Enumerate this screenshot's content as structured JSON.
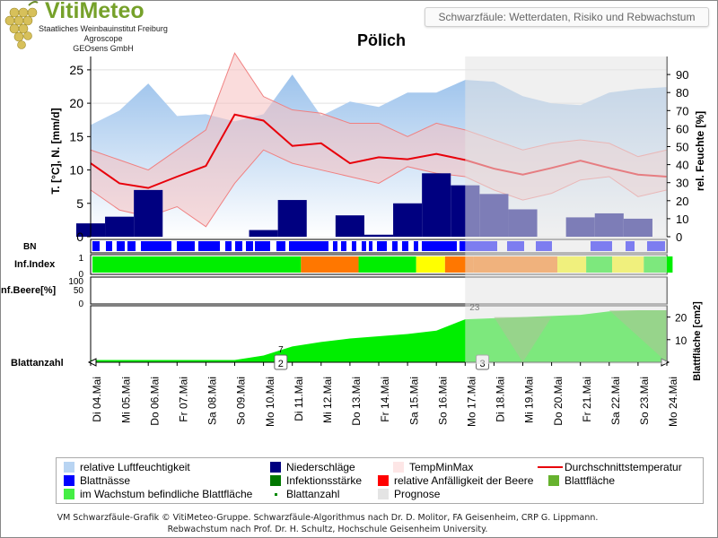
{
  "brand": {
    "name": "VitiMeteo",
    "lines": [
      "Staatliches Weinbauinstitut Freiburg",
      "Agroscope",
      "GEOsens GmbH"
    ]
  },
  "header": {
    "subtitle": "Schwarzfäule: Wetterdaten, Risiko und Rebwachstum",
    "title": "Pölich"
  },
  "colors": {
    "humidity": "#9dc3ec",
    "precip": "#000080",
    "tempband": "#f6c0c0",
    "avgtemp": "#e8000a",
    "wetness": "#0000ff",
    "growth": "#00ee00",
    "forecast": "#e8e8e8"
  },
  "chart_data": {
    "type": "combo",
    "dates": [
      "Di 04.Mai",
      "Mi 05.Mai",
      "Do 06.Mai",
      "Fr 07.Mai",
      "Sa 08.Mai",
      "So 09.Mai",
      "Mo 10.Mai",
      "Di 11.Mai",
      "Mi 12.Mai",
      "Do 13.Mai",
      "Fr 14.Mai",
      "Sa 15.Mai",
      "So 16.Mai",
      "Mo 17.Mai",
      "Di 18.Mai",
      "Mi 19.Mai",
      "Do 20.Mai",
      "Fr 21.Mai",
      "Sa 22.Mai",
      "So 23.Mai",
      "Mo 24.Mai"
    ],
    "forecast_start": "Mo 17.Mai",
    "left_axis": {
      "label": "T. [°C], N. [mm/d]",
      "ylim": [
        0,
        27
      ],
      "ticks": [
        0,
        5,
        10,
        15,
        20,
        25
      ]
    },
    "right_axis": {
      "label": "rel. Feuchte [%]",
      "ylim": [
        0,
        100
      ],
      "ticks": [
        0,
        10,
        20,
        30,
        40,
        50,
        60,
        70,
        80,
        90
      ]
    },
    "humidity_pct": [
      62,
      70,
      85,
      67,
      68,
      64,
      68,
      90,
      67,
      75,
      72,
      80,
      80,
      87,
      86,
      78,
      74,
      73,
      80,
      82,
      83
    ],
    "temp_max": [
      13,
      11.5,
      10,
      13,
      16,
      27.5,
      21,
      19,
      18.5,
      17,
      17,
      15,
      17,
      16,
      14.5,
      13,
      14,
      14.5,
      14,
      12,
      13
    ],
    "temp_min": [
      7,
      4,
      3,
      4.5,
      1.5,
      8,
      13,
      11,
      10,
      9,
      8,
      10.5,
      9.5,
      9,
      7,
      5.5,
      6.5,
      8.5,
      9,
      6,
      7
    ],
    "temp_avg": [
      11,
      8,
      7.3,
      9,
      10.6,
      18.3,
      17.4,
      13.6,
      14,
      11,
      11.9,
      11.6,
      12.4,
      11.5,
      10.2,
      9.3,
      10.3,
      11.4,
      10.3,
      9.3,
      9
    ],
    "precip_mm": [
      2,
      3,
      7,
      0,
      0,
      0,
      1,
      5.5,
      0,
      3.2,
      0.3,
      5,
      9.5,
      7.7,
      6.4,
      4.1,
      0,
      2.9,
      3.5,
      2.7,
      0
    ],
    "bn_label": "BN",
    "inf_index_label": "Inf.Index",
    "inf_index_ticks": [
      "0",
      "1"
    ],
    "inf_index_segments": [
      {
        "from": 0,
        "to": 7.3,
        "color": "#00ee00"
      },
      {
        "from": 7.3,
        "to": 9.3,
        "color": "#ff7700"
      },
      {
        "from": 9.3,
        "to": 11.3,
        "color": "#00ee00"
      },
      {
        "from": 11.3,
        "to": 12.3,
        "color": "#ffff00"
      },
      {
        "from": 12.3,
        "to": 13.3,
        "color": "#ff7700"
      },
      {
        "from": 13.3,
        "to": 16.2,
        "color": "#ff7700"
      },
      {
        "from": 16.2,
        "to": 17.2,
        "color": "#ffff00"
      },
      {
        "from": 17.2,
        "to": 18.1,
        "color": "#00ee00"
      },
      {
        "from": 18.1,
        "to": 19.2,
        "color": "#ffff00"
      },
      {
        "from": 19.2,
        "to": 20.2,
        "color": "#00ee00"
      }
    ],
    "inf_beere_label": "Inf.Beere[%]",
    "inf_beere_ticks": [
      "0",
      "50",
      "100"
    ],
    "blattanzahl_label": "Blattanzahl",
    "blattflaeche_label": "Blattfläche [cm2]",
    "blattflaeche_ticks": [
      "10",
      "20"
    ],
    "blattflaeche_cm2": [
      1,
      1,
      1,
      1,
      1,
      1,
      3,
      7,
      9,
      10.5,
      11.5,
      12.5,
      14,
      19,
      19.5,
      20,
      20.5,
      21,
      22.5,
      23,
      23
    ],
    "blattflaeche_max_label": "23",
    "leaf_count_marks": [
      {
        "at": "Mo 10.Mai",
        "count": "2",
        "above": "7"
      },
      {
        "at": "Mo 17.Mai",
        "count": "3",
        "above": ""
      }
    ]
  },
  "legend": [
    {
      "label": "relative Luftfeuchtigkeit",
      "color": "#b8d4f2",
      "kind": "swatch"
    },
    {
      "label": "Niederschläge",
      "color": "#000080",
      "kind": "swatch"
    },
    {
      "label": "TempMinMax",
      "color": "#fde6e6",
      "kind": "swatch"
    },
    {
      "label": "Durchschnittstemperatur",
      "color": "#e8000a",
      "kind": "line"
    },
    {
      "label": "Blattnässe",
      "color": "#0000ff",
      "kind": "swatch"
    },
    {
      "label": "Infektionsstärke",
      "color": "#007700",
      "kind": "swatch"
    },
    {
      "label": "relative Anfälligkeit der Beere",
      "color": "#ff0000",
      "kind": "swatch"
    },
    {
      "label": "Blattfläche",
      "color": "#66b22e",
      "kind": "swatch"
    },
    {
      "label": "im Wachstum befindliche Blattfläche",
      "color": "#44ee44",
      "kind": "swatch"
    },
    {
      "label": "Blattanzahl",
      "color": "#008800",
      "kind": "dot"
    },
    {
      "label": "Prognose",
      "color": "#e4e4e4",
      "kind": "swatch"
    }
  ],
  "footer": {
    "line1": "VM Schwarzfäule-Grafik © VitiMeteo-Gruppe. Schwarzfäule-Algorithmus nach Dr. D. Molitor, FA Geisenheim, CRP G. Lippmann.",
    "line2": "Rebwachstum nach Prof. Dr. H. Schultz, Hochschule Geisenheim University."
  }
}
